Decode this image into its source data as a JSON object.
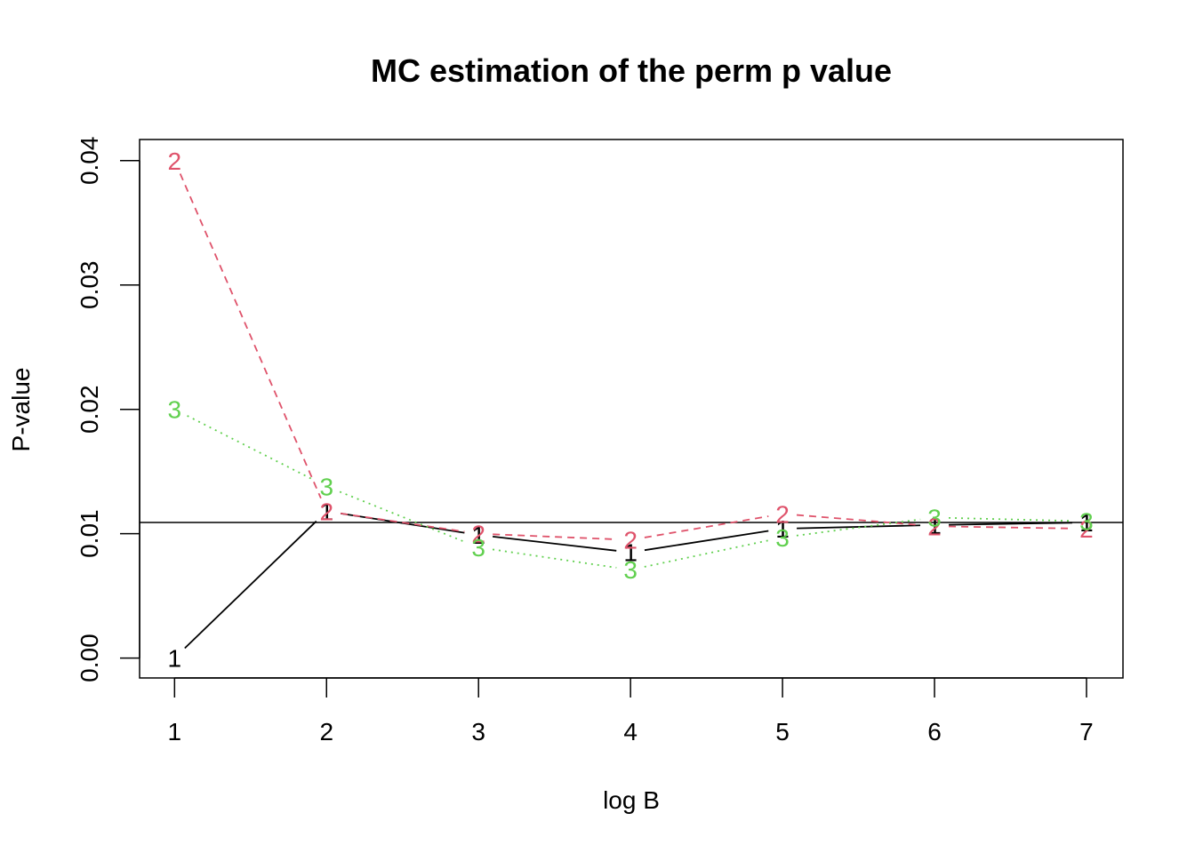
{
  "chart_data": {
    "type": "line",
    "title": "MC estimation of the perm p value",
    "xlabel": "log B",
    "ylabel": "P-value",
    "x": [
      1,
      2,
      3,
      4,
      5,
      6,
      7
    ],
    "xlim": [
      0.77,
      7.24
    ],
    "ylim": [
      -0.0016,
      0.0417
    ],
    "x_ticks": [
      "1",
      "2",
      "3",
      "4",
      "5",
      "6",
      "7"
    ],
    "y_ticks": [
      "0.00",
      "0.01",
      "0.02",
      "0.03",
      "0.04"
    ],
    "y_tick_values": [
      0,
      0.01,
      0.02,
      0.03,
      0.04
    ],
    "reference_line": 0.0109,
    "grid": false,
    "legend": "none",
    "series": [
      {
        "label": "1",
        "color": "#000000",
        "dash": "solid",
        "values": [
          0.0,
          0.0118,
          0.0099,
          0.0085,
          0.0104,
          0.0107,
          0.0109
        ]
      },
      {
        "label": "2",
        "color": "#DF536B",
        "dash": "dashed",
        "values": [
          0.04,
          0.0118,
          0.01,
          0.0095,
          0.0116,
          0.0106,
          0.0104
        ]
      },
      {
        "label": "3",
        "color": "#61D04F",
        "dash": "dotted",
        "values": [
          0.02,
          0.0138,
          0.0089,
          0.0071,
          0.0097,
          0.0113,
          0.011
        ]
      }
    ]
  }
}
